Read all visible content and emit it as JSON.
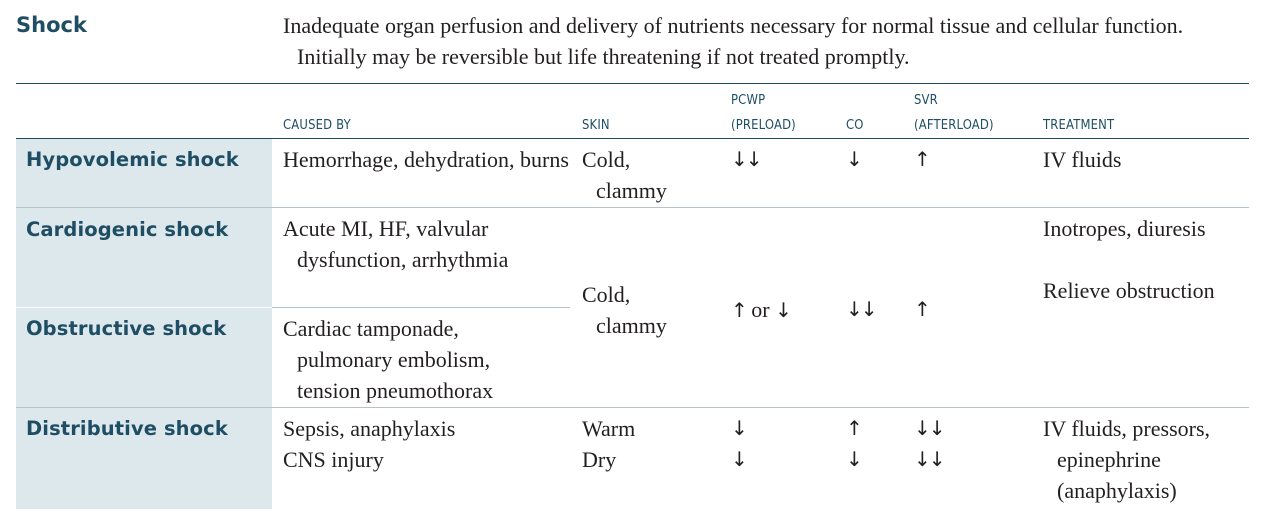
{
  "title": "Shock",
  "definition": "Inadequate organ perfusion and delivery of nutrients necessary for normal tissue and cellular function. Initially may be reversible but life threatening if not treated promptly.",
  "headers": {
    "caused_by": "CAUSED BY",
    "skin": "SKIN",
    "pcwp_1": "PCWP",
    "pcwp_2": "(PRELOAD)",
    "co": "CO",
    "svr_1": "SVR",
    "svr_2": "(AFTERLOAD)",
    "treatment": "TREATMENT"
  },
  "rows": {
    "hypovolemic": {
      "name": "Hypovolemic shock",
      "caused_by": "Hemorrhage, dehydration, burns",
      "skin": "Cold, clammy",
      "pcwp": "↓↓",
      "co": "↓",
      "svr": "↑",
      "treatment": "IV fluids"
    },
    "cardiogenic": {
      "name": "Cardiogenic shock",
      "caused_by": "Acute MI, HF, valvular dysfunction, arrhythmia",
      "treatment": "Inotropes, diuresis"
    },
    "obstructive": {
      "name": "Obstructive shock",
      "caused_by": "Cardiac tamponade, pulmonary embolism, tension pneumothorax",
      "treatment": "Relieve obstruction"
    },
    "shared": {
      "skin": "Cold, clammy",
      "pcwp_up": "↑",
      "pcwp_or": " or ",
      "pcwp_down": "↓",
      "co": "↓↓",
      "svr": "↑"
    },
    "distributive": {
      "name": "Distributive shock",
      "causes": [
        {
          "caused_by": "Sepsis, anaphylaxis",
          "skin": "Warm",
          "pcwp": "↓",
          "co": "↑",
          "svr": "↓↓"
        },
        {
          "caused_by": "CNS injury",
          "skin": "Dry",
          "pcwp": "↓",
          "co": "↓",
          "svr": "↓↓"
        }
      ],
      "treatment": "IV fluids, pressors, epinephrine (anaphylaxis)"
    }
  }
}
